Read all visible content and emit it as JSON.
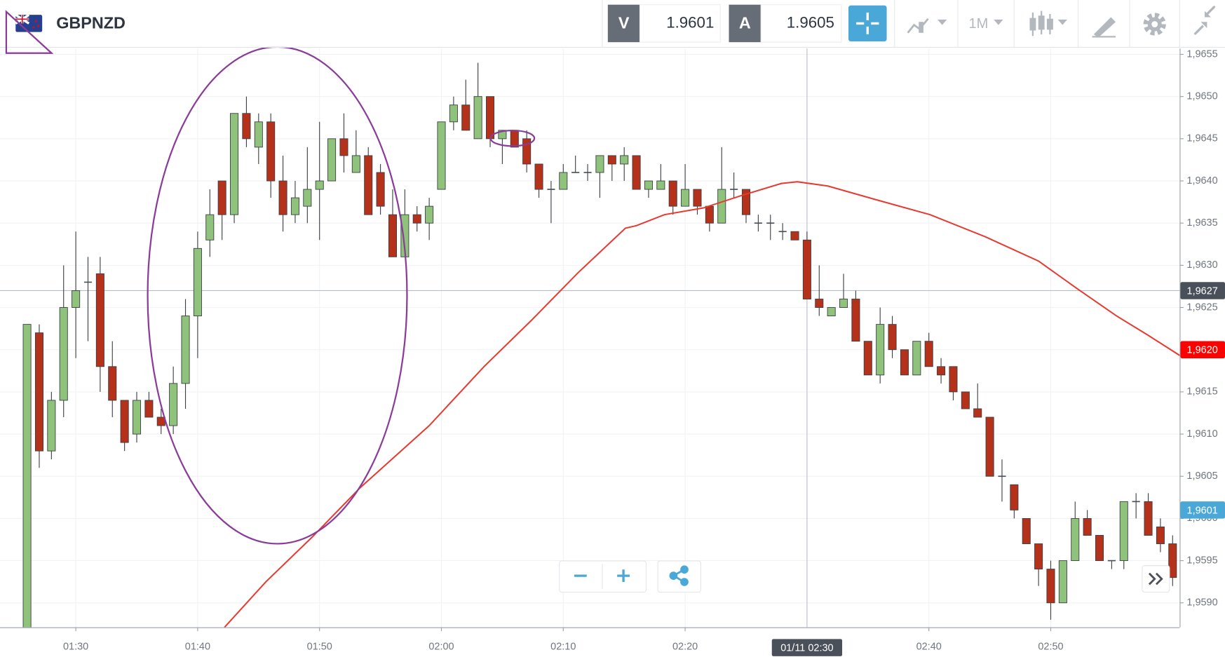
{
  "toolbar": {
    "symbol": "GBPNZD",
    "sell_label": "V",
    "sell_price": "1.9601",
    "buy_label": "A",
    "buy_price": "1.9605",
    "timeframe": "1M"
  },
  "chart_data": {
    "type": "candlestick",
    "up_color": "#8fc27a",
    "down_color": "#b5311a",
    "grid": true,
    "xlim": [
      83.78,
      180.58
    ],
    "ylim": [
      1.95871,
      1.96557
    ],
    "xticks": [
      {
        "value": 90,
        "label": "01:30"
      },
      {
        "value": 100,
        "label": "01:40"
      },
      {
        "value": 110,
        "label": "01:50"
      },
      {
        "value": 120,
        "label": "02:00"
      },
      {
        "value": 130,
        "label": "02:10"
      },
      {
        "value": 140,
        "label": "02:20"
      },
      {
        "value": 160,
        "label": "02:40"
      },
      {
        "value": 170,
        "label": "02:50"
      }
    ],
    "yticks": [
      {
        "value": 1.9655,
        "label": "1,9655"
      },
      {
        "value": 1.965,
        "label": "1,9650"
      },
      {
        "value": 1.9645,
        "label": "1,9645"
      },
      {
        "value": 1.964,
        "label": "1,9640"
      },
      {
        "value": 1.9635,
        "label": "1,9635"
      },
      {
        "value": 1.963,
        "label": "1,9630"
      },
      {
        "value": 1.9625,
        "label": "1,9625"
      },
      {
        "value": 1.962,
        "label": "1,9620"
      },
      {
        "value": 1.9615,
        "label": "1,9615"
      },
      {
        "value": 1.961,
        "label": "1,9610"
      },
      {
        "value": 1.9605,
        "label": "1,9605"
      },
      {
        "value": 1.96,
        "label": "1,9600"
      },
      {
        "value": 1.9595,
        "label": "1,9595"
      },
      {
        "value": 1.959,
        "label": "1,9590"
      }
    ],
    "x": [
      86,
      87,
      88,
      89,
      90,
      91,
      92,
      93,
      94,
      95,
      96,
      97,
      98,
      99,
      100,
      101,
      102,
      103,
      104,
      105,
      106,
      107,
      108,
      109,
      110,
      111,
      112,
      113,
      114,
      115,
      116,
      117,
      118,
      119,
      120,
      121,
      122,
      123,
      124,
      125,
      126,
      127,
      128,
      129,
      130,
      131,
      132,
      133,
      134,
      135,
      136,
      137,
      138,
      139,
      140,
      141,
      142,
      143,
      144,
      145,
      146,
      147,
      148,
      149,
      150,
      151,
      152,
      153,
      154,
      155,
      156,
      157,
      158,
      159,
      160,
      161,
      162,
      163,
      164,
      165,
      166,
      167,
      168,
      169,
      170,
      171,
      172,
      173,
      174,
      175,
      176,
      177,
      178,
      179,
      180
    ],
    "open": [
      1.9587,
      1.9622,
      1.9608,
      1.9614,
      1.9625,
      1.9628,
      1.9629,
      1.9618,
      1.9614,
      1.961,
      1.9614,
      1.9612,
      1.9611,
      1.9616,
      1.9624,
      1.9633,
      1.964,
      1.9636,
      1.9648,
      1.9644,
      1.9647,
      1.964,
      1.9636,
      1.9637,
      1.9639,
      1.964,
      1.9645,
      1.9641,
      1.9643,
      1.9641,
      1.9636,
      1.9631,
      1.9636,
      1.9635,
      1.9639,
      1.9647,
      1.9649,
      1.9645,
      1.965,
      1.9645,
      1.9646,
      1.9645,
      1.9642,
      1.9639,
      1.9639,
      1.9641,
      1.9641,
      1.9641,
      1.9643,
      1.9642,
      1.9643,
      1.9639,
      1.9639,
      1.964,
      1.9637,
      1.9639,
      1.9637,
      1.9635,
      1.9639,
      1.9639,
      1.9635,
      1.9635,
      1.9634,
      1.9634,
      1.9633,
      1.9626,
      1.9624,
      1.9625,
      1.9626,
      1.9621,
      1.9617,
      1.9623,
      1.962,
      1.9617,
      1.9621,
      1.9618,
      1.9618,
      1.9615,
      1.9613,
      1.9612,
      1.9605,
      1.9604,
      1.96,
      1.9597,
      1.9594,
      1.959,
      1.9595,
      1.96,
      1.9598,
      1.9595,
      1.9595,
      1.9602,
      1.9602,
      1.9599,
      1.9597
    ],
    "high": [
      1.9623,
      1.9623,
      1.9615,
      1.963,
      1.9634,
      1.9631,
      1.9631,
      1.9621,
      1.9614,
      1.9615,
      1.9615,
      1.9613,
      1.9618,
      1.9626,
      1.9634,
      1.9639,
      1.964,
      1.9648,
      1.965,
      1.9648,
      1.9648,
      1.9643,
      1.964,
      1.9644,
      1.9647,
      1.9645,
      1.9648,
      1.9646,
      1.9644,
      1.9642,
      1.9639,
      1.9639,
      1.9637,
      1.9638,
      1.9647,
      1.965,
      1.9652,
      1.9654,
      1.965,
      1.9646,
      1.9646,
      1.9646,
      1.9642,
      1.964,
      1.9642,
      1.9643,
      1.9642,
      1.9643,
      1.9643,
      1.9644,
      1.9643,
      1.964,
      1.9642,
      1.964,
      1.9642,
      1.9639,
      1.9637,
      1.9644,
      1.9641,
      1.9639,
      1.9636,
      1.9636,
      1.9635,
      1.9634,
      1.9634,
      1.963,
      1.9625,
      1.9629,
      1.9627,
      1.9621,
      1.9625,
      1.9624,
      1.962,
      1.9621,
      1.9622,
      1.9619,
      1.9618,
      1.9615,
      1.9616,
      1.9612,
      1.9607,
      1.9604,
      1.96,
      1.9597,
      1.9595,
      1.9595,
      1.9602,
      1.9601,
      1.9598,
      1.9595,
      1.9602,
      1.9603,
      1.9603,
      1.96,
      1.9598
    ],
    "low": [
      1.9587,
      1.9606,
      1.9607,
      1.9612,
      1.9619,
      1.9621,
      1.9615,
      1.9612,
      1.9608,
      1.9609,
      1.9612,
      1.961,
      1.961,
      1.9613,
      1.9619,
      1.9631,
      1.9633,
      1.9635,
      1.9644,
      1.9642,
      1.9638,
      1.9634,
      1.9635,
      1.9635,
      1.9633,
      1.964,
      1.9641,
      1.9641,
      1.9636,
      1.9636,
      1.9631,
      1.9631,
      1.9634,
      1.9633,
      1.9639,
      1.9646,
      1.9646,
      1.9645,
      1.9644,
      1.9642,
      1.9644,
      1.9641,
      1.9638,
      1.9635,
      1.9639,
      1.9641,
      1.964,
      1.9638,
      1.964,
      1.964,
      1.9639,
      1.9638,
      1.9639,
      1.9636,
      1.9637,
      1.9636,
      1.9634,
      1.9635,
      1.9638,
      1.9635,
      1.9634,
      1.9633,
      1.9633,
      1.9633,
      1.9626,
      1.9624,
      1.9624,
      1.9625,
      1.9621,
      1.9617,
      1.9616,
      1.9619,
      1.9617,
      1.9617,
      1.9618,
      1.9616,
      1.9614,
      1.9613,
      1.9612,
      1.9605,
      1.9602,
      1.96,
      1.9597,
      1.9592,
      1.9588,
      1.959,
      1.9595,
      1.9598,
      1.9595,
      1.9594,
      1.9594,
      1.96,
      1.9598,
      1.9596,
      1.9592
    ],
    "close": [
      1.9623,
      1.9608,
      1.9614,
      1.9625,
      1.9627,
      1.9628,
      1.9618,
      1.9614,
      1.9609,
      1.9614,
      1.9612,
      1.9611,
      1.9616,
      1.9624,
      1.9632,
      1.9636,
      1.9636,
      1.9648,
      1.9645,
      1.9647,
      1.964,
      1.9636,
      1.9638,
      1.9639,
      1.964,
      1.9645,
      1.9643,
      1.9643,
      1.9636,
      1.9637,
      1.9631,
      1.9636,
      1.9635,
      1.9637,
      1.9647,
      1.9649,
      1.9646,
      1.965,
      1.9645,
      1.9646,
      1.9644,
      1.9642,
      1.9639,
      1.9639,
      1.9641,
      1.9641,
      1.9641,
      1.9643,
      1.9642,
      1.9643,
      1.9639,
      1.964,
      1.964,
      1.9637,
      1.9639,
      1.9637,
      1.9635,
      1.9639,
      1.9639,
      1.9636,
      1.9635,
      1.9635,
      1.9634,
      1.9633,
      1.9626,
      1.9625,
      1.9625,
      1.9626,
      1.9621,
      1.9617,
      1.9623,
      1.962,
      1.9617,
      1.9621,
      1.9618,
      1.9617,
      1.9615,
      1.9613,
      1.9612,
      1.9605,
      1.9605,
      1.9601,
      1.9597,
      1.9594,
      1.959,
      1.9595,
      1.96,
      1.9598,
      1.9595,
      1.9595,
      1.9602,
      1.9602,
      1.9598,
      1.9597,
      1.9593
    ],
    "moving_average": {
      "color": "#e8392f",
      "x": [
        102.2,
        105.6,
        109.4,
        113.3,
        119.0,
        123.5,
        127.4,
        131.2,
        135.1,
        136.0,
        138.3,
        141.5,
        144.7,
        147.9,
        149.2,
        151.7,
        155.6,
        160.1,
        164.6,
        169.0,
        172.2,
        175.4,
        178.0,
        180.6
      ],
      "values": [
        1.95871,
        1.95925,
        1.95978,
        1.96036,
        1.9611,
        1.9618,
        1.96235,
        1.96291,
        1.96344,
        1.96347,
        1.9636,
        1.96368,
        1.96383,
        1.96397,
        1.96399,
        1.96394,
        1.96378,
        1.9636,
        1.96334,
        1.96305,
        1.96272,
        1.9624,
        1.96217,
        1.96193
      ]
    },
    "crosshair": {
      "x": 150,
      "x_label": "01/11 02:30",
      "y": 1.9627,
      "y_label": "1,9627",
      "color": "#4a5059"
    },
    "price_tags": [
      {
        "value": 1.962,
        "label": "1,9620",
        "color": "#ff0000"
      },
      {
        "value": 1.9601,
        "label": "1,9601",
        "color": "#4aa8d8"
      }
    ]
  }
}
